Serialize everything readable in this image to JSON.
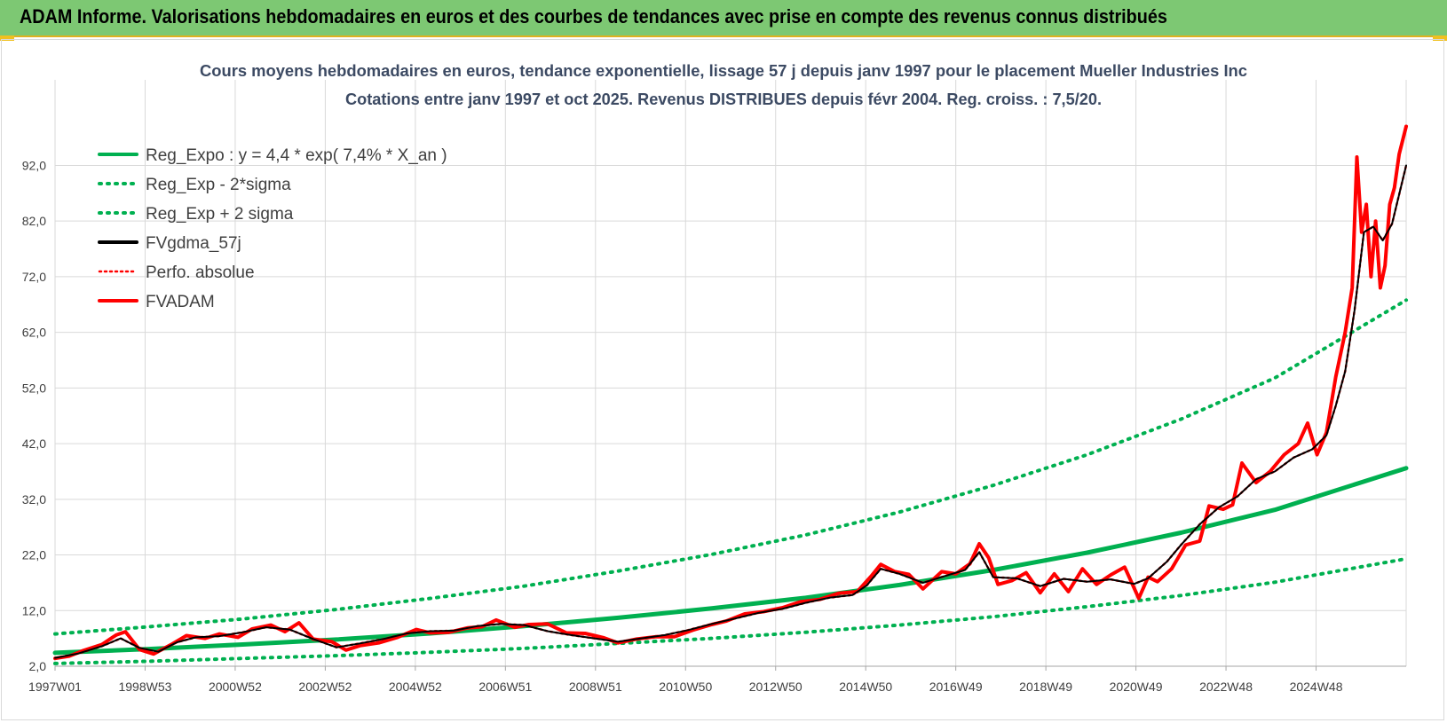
{
  "banner": {
    "title": "ADAM Informe. Valorisations hebdomadaires en euros et des courbes de tendances avec prise en compte des revenus connus distribués"
  },
  "chart_data": {
    "type": "line",
    "title": "Cours moyens hebdomadaires en euros, tendance exponentielle, lissage 57 j depuis janv 1997 pour le placement Mueller Industries Inc",
    "subtitle": "Cotations entre janv 1997 et oct 2025. Revenus DISTRIBUES depuis févr 2004. Reg. croiss. : 7,5/20.",
    "xlabel": "",
    "ylabel": "",
    "ylim": [
      2.0,
      101.0
    ],
    "xlim": [
      1997.0,
      2025.8
    ],
    "y_ticks": [
      "2,0",
      "12,0",
      "22,0",
      "32,0",
      "42,0",
      "52,0",
      "62,0",
      "72,0",
      "82,0",
      "92,0"
    ],
    "x_ticks": [
      "1997W01",
      "1998W53",
      "2000W52",
      "2002W52",
      "2004W52",
      "2006W51",
      "2008W51",
      "2010W50",
      "2012W50",
      "2014W50",
      "2016W49",
      "2018W49",
      "2020W49",
      "2022W48",
      "2024W48"
    ],
    "grid": true,
    "legend_position": "top-left",
    "colors": {
      "green": "#00b050",
      "black": "#000000",
      "red": "#ff0000"
    },
    "series": [
      {
        "name": "Reg_Expo : y = 4,4 * exp( 7,4% *  X_an )",
        "style": "solid",
        "color": "#00b050",
        "x": [
          1997.0,
          1999.0,
          2001.0,
          2003.0,
          2005.0,
          2007.0,
          2009.0,
          2011.0,
          2013.0,
          2015.0,
          2017.0,
          2019.0,
          2021.0,
          2023.0,
          2025.8
        ],
        "values": [
          4.4,
          5.1,
          5.9,
          6.8,
          7.9,
          9.2,
          10.7,
          12.4,
          14.3,
          16.6,
          19.3,
          22.4,
          26.0,
          30.1,
          37.6
        ]
      },
      {
        "name": "Reg_Exp - 2*sigma",
        "style": "dotted",
        "color": "#00b050",
        "x": [
          1997.0,
          1999.0,
          2001.0,
          2003.0,
          2005.0,
          2007.0,
          2009.0,
          2011.0,
          2013.0,
          2015.0,
          2017.0,
          2019.0,
          2021.0,
          2023.0,
          2025.8
        ],
        "values": [
          2.5,
          2.9,
          3.4,
          3.9,
          4.5,
          5.2,
          6.1,
          7.0,
          8.1,
          9.4,
          10.9,
          12.7,
          14.7,
          17.1,
          21.3
        ]
      },
      {
        "name": "Reg_Exp + 2 sigma",
        "style": "dotted",
        "color": "#00b050",
        "x": [
          1997.0,
          1999.0,
          2001.0,
          2003.0,
          2005.0,
          2007.0,
          2009.0,
          2011.0,
          2013.0,
          2015.0,
          2017.0,
          2019.0,
          2021.0,
          2023.0,
          2025.8
        ],
        "values": [
          7.8,
          9.1,
          10.5,
          12.2,
          14.2,
          16.4,
          19.1,
          22.1,
          25.6,
          29.7,
          34.5,
          40.0,
          46.4,
          53.8,
          67.8
        ]
      },
      {
        "name": "FVgdma_57j",
        "style": "solid",
        "color": "#000000",
        "x": [
          1997.0,
          1997.5,
          1998.0,
          1998.4,
          1998.8,
          1999.2,
          1999.6,
          2000.0,
          2000.5,
          2001.0,
          2001.5,
          2002.0,
          2002.5,
          2003.0,
          2003.5,
          2004.0,
          2004.5,
          2005.0,
          2005.5,
          2006.0,
          2006.5,
          2007.0,
          2007.5,
          2008.0,
          2008.5,
          2009.0,
          2009.5,
          2010.0,
          2010.5,
          2011.0,
          2011.5,
          2012.0,
          2012.5,
          2013.0,
          2013.5,
          2014.0,
          2014.3,
          2014.6,
          2015.0,
          2015.5,
          2016.0,
          2016.4,
          2016.7,
          2017.0,
          2017.5,
          2018.0,
          2018.5,
          2019.0,
          2019.5,
          2020.0,
          2020.3,
          2020.7,
          2021.0,
          2021.4,
          2021.8,
          2022.2,
          2022.6,
          2023.0,
          2023.4,
          2023.8,
          2024.1,
          2024.3,
          2024.5,
          2024.7,
          2024.9,
          2025.1,
          2025.3,
          2025.5,
          2025.8
        ],
        "values": [
          3.5,
          4.3,
          5.6,
          7.0,
          5.3,
          4.6,
          6.3,
          7.2,
          7.4,
          8.1,
          9.0,
          8.6,
          6.9,
          5.4,
          6.1,
          6.9,
          7.9,
          8.3,
          8.4,
          9.2,
          9.6,
          9.4,
          8.3,
          7.6,
          7.0,
          6.4,
          7.0,
          7.6,
          8.5,
          9.6,
          10.6,
          11.6,
          12.3,
          13.4,
          14.3,
          14.8,
          16.5,
          19.5,
          18.6,
          17.0,
          18.3,
          19.3,
          22.5,
          18.0,
          17.8,
          16.4,
          17.7,
          17.2,
          17.6,
          16.8,
          17.8,
          20.8,
          23.8,
          27.5,
          30.5,
          32.5,
          35.6,
          37.0,
          39.5,
          41.0,
          43.5,
          48.8,
          55.0,
          66.0,
          80.0,
          81.0,
          78.5,
          81.5,
          92.0
        ]
      },
      {
        "name": "Perfo. absolue",
        "style": "dotted",
        "color": "#ff0000",
        "x": [
          1997.0,
          1997.5,
          1998.0,
          1998.4,
          1998.8,
          1999.2,
          1999.6,
          2000.0,
          2000.5,
          2001.0,
          2001.5,
          2002.0,
          2002.5,
          2003.0,
          2003.5,
          2004.0,
          2004.5,
          2005.0,
          2005.5,
          2006.0,
          2006.5,
          2007.0,
          2007.5,
          2008.0,
          2008.5,
          2009.0,
          2009.5,
          2010.0,
          2010.5,
          2011.0,
          2011.5,
          2012.0,
          2012.5,
          2013.0,
          2013.5,
          2014.0,
          2014.3,
          2014.6,
          2015.0,
          2015.5,
          2016.0,
          2016.4,
          2016.7,
          2017.0,
          2017.5,
          2018.0,
          2018.5,
          2019.0,
          2019.5,
          2020.0,
          2020.3,
          2020.7,
          2021.0,
          2021.4,
          2021.8,
          2022.2,
          2022.6,
          2023.0,
          2023.4,
          2023.8,
          2024.1,
          2024.3,
          2024.5,
          2024.7,
          2024.9,
          2025.1,
          2025.3,
          2025.5,
          2025.8
        ],
        "values": [
          3.5,
          4.3,
          5.6,
          7.0,
          5.3,
          4.6,
          6.3,
          7.2,
          7.4,
          8.1,
          9.0,
          8.6,
          6.9,
          5.4,
          6.1,
          6.9,
          7.9,
          8.3,
          8.4,
          9.2,
          9.6,
          9.4,
          8.3,
          7.6,
          7.0,
          6.4,
          7.0,
          7.6,
          8.5,
          9.6,
          10.6,
          11.6,
          12.3,
          13.4,
          14.3,
          14.8,
          16.5,
          19.5,
          18.6,
          17.0,
          18.3,
          19.3,
          22.5,
          18.0,
          17.8,
          16.4,
          17.7,
          17.2,
          17.6,
          16.8,
          17.8,
          20.8,
          23.8,
          27.5,
          30.5,
          32.5,
          35.6,
          37.0,
          39.5,
          41.0,
          43.5,
          48.8,
          55.0,
          66.0,
          80.0,
          81.0,
          78.5,
          81.5,
          92.0
        ]
      },
      {
        "name": "FVADAM",
        "style": "solid",
        "color": "#ff0000",
        "x": [
          1997.0,
          1997.3,
          1997.6,
          1998.0,
          1998.3,
          1998.5,
          1998.8,
          1999.1,
          1999.5,
          1999.8,
          2000.2,
          2000.5,
          2000.9,
          2001.2,
          2001.6,
          2001.9,
          2002.2,
          2002.5,
          2002.9,
          2003.2,
          2003.5,
          2003.9,
          2004.3,
          2004.7,
          2005.0,
          2005.4,
          2005.8,
          2006.1,
          2006.4,
          2006.8,
          2007.1,
          2007.5,
          2007.9,
          2008.3,
          2008.7,
          2009.0,
          2009.4,
          2009.8,
          2010.2,
          2010.6,
          2011.0,
          2011.3,
          2011.7,
          2012.1,
          2012.5,
          2012.9,
          2013.3,
          2013.7,
          2014.1,
          2014.4,
          2014.6,
          2014.9,
          2015.2,
          2015.5,
          2015.9,
          2016.2,
          2016.5,
          2016.7,
          2016.9,
          2017.1,
          2017.4,
          2017.7,
          2018.0,
          2018.3,
          2018.6,
          2018.9,
          2019.2,
          2019.5,
          2019.8,
          2020.1,
          2020.3,
          2020.5,
          2020.8,
          2021.1,
          2021.4,
          2021.6,
          2021.9,
          2022.1,
          2022.3,
          2022.6,
          2022.9,
          2023.2,
          2023.5,
          2023.7,
          2023.9,
          2024.1,
          2024.3,
          2024.5,
          2024.65,
          2024.75,
          2024.85,
          2024.95,
          2025.05,
          2025.15,
          2025.25,
          2025.35,
          2025.45,
          2025.55,
          2025.65,
          2025.8
        ],
        "values": [
          3.4,
          3.8,
          4.8,
          5.9,
          7.6,
          8.2,
          5.0,
          4.2,
          6.0,
          7.5,
          7.0,
          7.8,
          7.2,
          8.7,
          9.4,
          8.2,
          9.8,
          6.9,
          6.4,
          4.9,
          5.7,
          6.2,
          7.2,
          8.6,
          8.0,
          8.1,
          8.9,
          9.1,
          10.3,
          9.0,
          9.5,
          9.6,
          8.0,
          7.9,
          7.1,
          6.2,
          6.9,
          7.3,
          7.3,
          8.5,
          9.5,
          10.1,
          11.4,
          11.8,
          12.5,
          13.6,
          14.0,
          15.1,
          15.4,
          18.2,
          20.3,
          19.0,
          18.5,
          15.9,
          19.0,
          18.6,
          20.4,
          24.0,
          21.5,
          16.7,
          17.4,
          18.8,
          15.2,
          18.6,
          15.4,
          19.5,
          16.7,
          18.4,
          19.8,
          14.2,
          18.0,
          17.2,
          19.5,
          23.8,
          24.5,
          30.8,
          30.2,
          31.0,
          38.5,
          35.0,
          37.0,
          40.0,
          42.0,
          45.7,
          40.0,
          44.0,
          54.0,
          62.0,
          70.0,
          93.5,
          80.0,
          85.0,
          72.0,
          82.0,
          70.0,
          74.0,
          85.0,
          88.0,
          94.0,
          99.0
        ]
      }
    ]
  }
}
